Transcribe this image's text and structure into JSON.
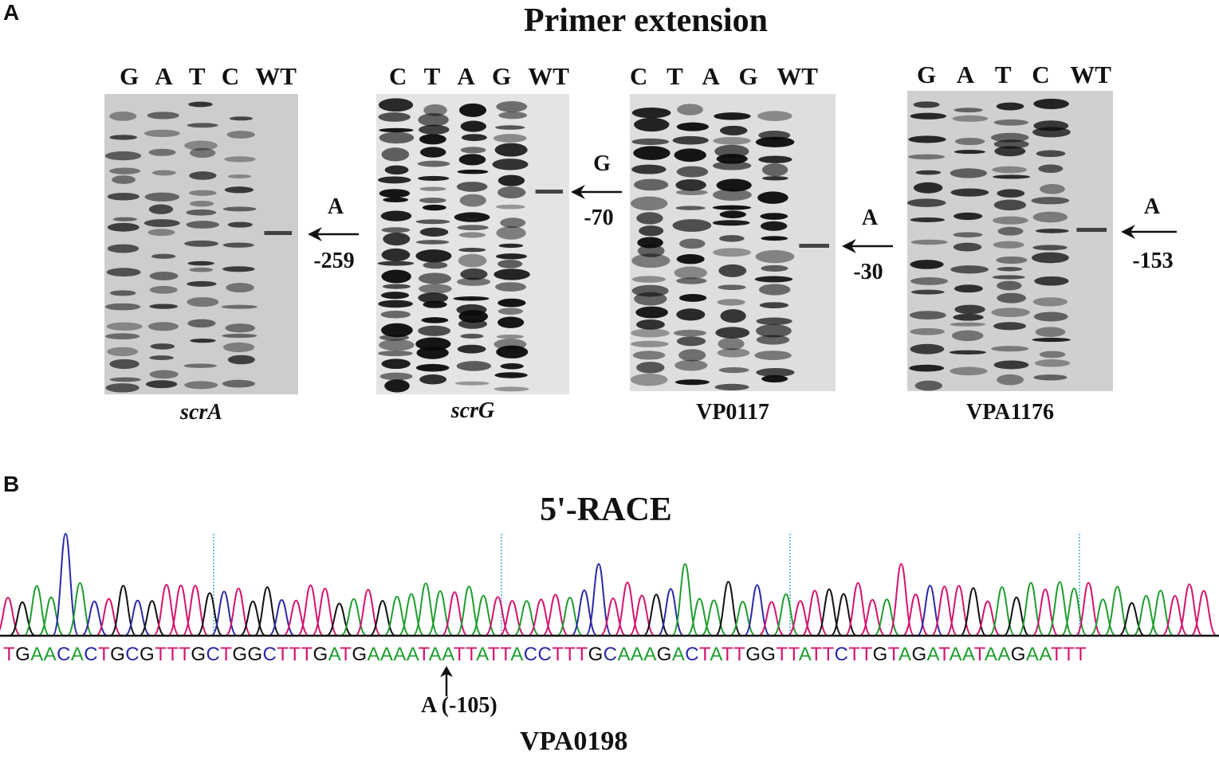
{
  "panel_a": {
    "letter": "A",
    "title": "Primer extension",
    "gels": [
      {
        "lanes": [
          "G",
          "A",
          "T",
          "C",
          "WT"
        ],
        "label": "scrA",
        "italic": true,
        "mark_base": "A",
        "mark_pos": "-259"
      },
      {
        "lanes": [
          "C",
          "T",
          "A",
          "G",
          "WT"
        ],
        "label": "scrG",
        "italic": true,
        "mark_base": "G",
        "mark_pos": "-70"
      },
      {
        "lanes": [
          "C",
          "T",
          "A",
          "G",
          "WT"
        ],
        "label": "VP0117",
        "italic": false,
        "mark_base": "A",
        "mark_pos": "-30"
      },
      {
        "lanes": [
          "G",
          "A",
          "T",
          "C",
          "WT"
        ],
        "label": "VPA1176",
        "italic": false,
        "mark_base": "A",
        "mark_pos": "-153"
      }
    ]
  },
  "panel_b": {
    "letter": "B",
    "title": "5'-RACE",
    "sequence": "TGAACACTGCGTTTGCTGGCTTTGATGAAAATAATTATTACCTTTGCAAAGACTATTGGTTATTCTTGTAGATAATAAGAATTT",
    "annotation": "A (-105)",
    "gene": "VPA0198",
    "base_colors": {
      "A": "#1f9e2f",
      "T": "#d4146e",
      "G": "#111111",
      "C": "#2a2aa8"
    }
  }
}
